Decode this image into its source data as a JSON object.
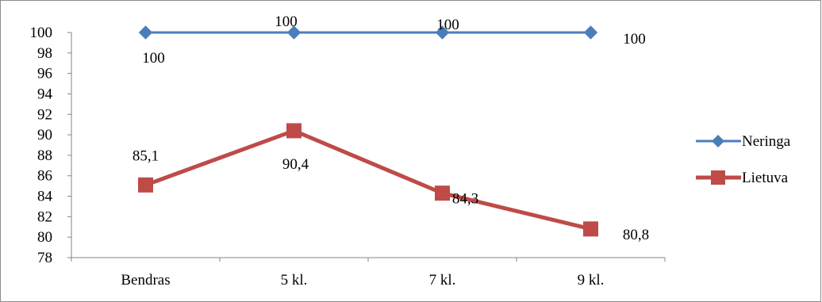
{
  "chart_data": {
    "type": "line",
    "categories": [
      "Bendras",
      "5 kl.",
      "7 kl.",
      "9 kl."
    ],
    "series": [
      {
        "name": "Neringa",
        "values": [
          100,
          100,
          100,
          100
        ],
        "labels": [
          "100",
          "100",
          "100",
          "100"
        ],
        "color": "#4a7ebb",
        "marker": "diamond"
      },
      {
        "name": "Lietuva",
        "values": [
          85.1,
          90.4,
          84.3,
          80.8
        ],
        "labels": [
          "85,1",
          "90,4",
          "84,3",
          "80,8"
        ],
        "color": "#be4b48",
        "marker": "square"
      }
    ],
    "ylim": [
      78,
      100
    ],
    "yticks": [
      "78",
      "80",
      "82",
      "84",
      "86",
      "88",
      "90",
      "92",
      "94",
      "96",
      "98",
      "100"
    ],
    "grid": false,
    "legend_position": "right"
  }
}
